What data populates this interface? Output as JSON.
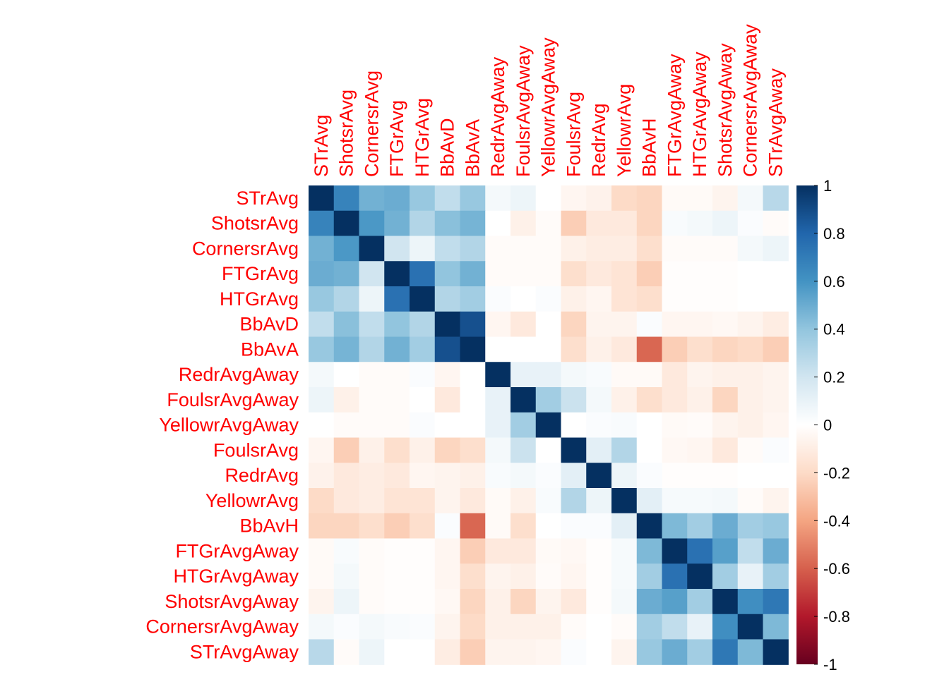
{
  "chart_data": {
    "type": "heatmap",
    "title": "",
    "variables": [
      "STrAvg",
      "ShotsrAvg",
      "CornersrAvg",
      "FTGrAvg",
      "HTGrAvg",
      "BbAvD",
      "BbAvA",
      "RedrAvgAway",
      "FoulsrAvgAway",
      "YellowrAvgAway",
      "FoulsrAvg",
      "RedrAvg",
      "YellowrAvg",
      "BbAvH",
      "FTGrAvgAway",
      "HTGrAvgAway",
      "ShotsrAvgAway",
      "CornersrAvgAway",
      "STrAvgAway"
    ],
    "matrix": [
      [
        1,
        0.67,
        0.48,
        0.5,
        0.38,
        0.25,
        0.38,
        0.05,
        0.08,
        0,
        -0.05,
        -0.07,
        -0.2,
        -0.22,
        -0.03,
        -0.03,
        -0.06,
        0.05,
        0.28
      ],
      [
        0.67,
        1,
        0.58,
        0.48,
        0.3,
        0.42,
        0.47,
        0,
        -0.08,
        -0.02,
        -0.25,
        -0.12,
        -0.12,
        -0.22,
        0.03,
        0.05,
        0.08,
        0.02,
        -0.02
      ],
      [
        0.48,
        0.58,
        1,
        0.2,
        0.08,
        0.25,
        0.3,
        -0.02,
        -0.02,
        -0.02,
        -0.08,
        -0.1,
        -0.1,
        -0.18,
        -0.02,
        -0.02,
        -0.02,
        0.05,
        0.08
      ],
      [
        0.5,
        0.48,
        0.2,
        1,
        0.75,
        0.4,
        0.48,
        -0.02,
        -0.02,
        -0.02,
        -0.18,
        -0.12,
        -0.15,
        -0.25,
        -0.01,
        -0.01,
        -0.01,
        0,
        0
      ],
      [
        0.38,
        0.3,
        0.08,
        0.75,
        1,
        0.3,
        0.35,
        0.02,
        0,
        0.02,
        -0.08,
        -0.05,
        -0.15,
        -0.18,
        -0.01,
        -0.01,
        -0.01,
        0,
        0
      ],
      [
        0.25,
        0.42,
        0.25,
        0.4,
        0.3,
        1,
        0.88,
        -0.05,
        -0.12,
        0,
        -0.22,
        -0.06,
        -0.06,
        0.02,
        -0.05,
        -0.05,
        -0.04,
        -0.06,
        -0.1
      ],
      [
        0.38,
        0.47,
        0.3,
        0.48,
        0.35,
        0.88,
        1,
        0,
        0,
        0,
        -0.18,
        -0.08,
        -0.12,
        -0.58,
        -0.25,
        -0.18,
        -0.22,
        -0.2,
        -0.25
      ],
      [
        0.05,
        0,
        -0.02,
        -0.02,
        0.02,
        -0.05,
        0,
        1,
        0.1,
        0.1,
        0.05,
        0.03,
        -0.03,
        -0.03,
        -0.12,
        -0.06,
        -0.08,
        -0.08,
        -0.06
      ],
      [
        0.08,
        -0.08,
        -0.02,
        -0.02,
        0,
        -0.12,
        0,
        0.1,
        1,
        0.35,
        0.22,
        0.05,
        -0.08,
        -0.18,
        -0.12,
        -0.08,
        -0.22,
        -0.08,
        -0.06
      ],
      [
        0,
        -0.02,
        -0.02,
        -0.02,
        0.02,
        0,
        0,
        0.1,
        0.35,
        1,
        0,
        0.02,
        0.03,
        0,
        -0.03,
        -0.02,
        -0.06,
        -0.08,
        -0.05
      ],
      [
        -0.05,
        -0.25,
        -0.08,
        -0.18,
        -0.08,
        -0.22,
        -0.18,
        0.05,
        0.22,
        0,
        1,
        0.12,
        0.3,
        0,
        -0.04,
        -0.05,
        -0.12,
        -0.02,
        0.02
      ],
      [
        -0.07,
        -0.12,
        -0.1,
        -0.12,
        -0.05,
        -0.06,
        -0.08,
        0.03,
        0.05,
        0.02,
        0.12,
        1,
        0.08,
        0.02,
        -0.01,
        -0.01,
        -0.01,
        0,
        0
      ],
      [
        -0.2,
        -0.12,
        -0.1,
        -0.15,
        -0.15,
        -0.06,
        -0.12,
        -0.03,
        -0.08,
        0.03,
        0.3,
        0.08,
        1,
        0.12,
        0.04,
        0.04,
        0.05,
        -0.02,
        -0.06
      ],
      [
        -0.22,
        -0.22,
        -0.18,
        -0.25,
        -0.18,
        0.02,
        -0.58,
        -0.03,
        -0.18,
        0,
        0.02,
        0.02,
        0.12,
        1,
        0.45,
        0.35,
        0.5,
        0.35,
        0.38
      ],
      [
        -0.03,
        0.03,
        -0.02,
        -0.01,
        -0.01,
        -0.05,
        -0.25,
        -0.12,
        -0.12,
        -0.03,
        -0.04,
        -0.01,
        0.04,
        0.45,
        1,
        0.75,
        0.55,
        0.25,
        0.5
      ],
      [
        -0.03,
        0.05,
        -0.02,
        -0.01,
        -0.01,
        -0.05,
        -0.18,
        -0.06,
        -0.08,
        -0.02,
        -0.05,
        -0.01,
        0.04,
        0.35,
        0.75,
        1,
        0.35,
        0.1,
        0.35
      ],
      [
        -0.06,
        0.08,
        -0.02,
        -0.01,
        -0.01,
        -0.04,
        -0.22,
        -0.08,
        -0.22,
        -0.06,
        -0.12,
        -0.01,
        0.05,
        0.5,
        0.55,
        0.35,
        1,
        0.62,
        0.72
      ],
      [
        0.05,
        0.02,
        0.05,
        0.03,
        0.02,
        -0.06,
        -0.2,
        -0.08,
        -0.08,
        -0.08,
        -0.02,
        0,
        -0.02,
        0.35,
        0.25,
        0.1,
        0.62,
        1,
        0.45
      ],
      [
        0.28,
        -0.02,
        0.08,
        0,
        0,
        -0.1,
        -0.25,
        -0.06,
        -0.06,
        -0.05,
        0.02,
        0,
        -0.06,
        0.38,
        0.5,
        0.35,
        0.72,
        0.45,
        1
      ]
    ],
    "colorbar": {
      "range": [
        -1,
        1
      ],
      "ticks": [
        "1",
        "0.8",
        "0.6",
        "0.4",
        "0.2",
        "0",
        "-0.2",
        "-0.4",
        "-0.6",
        "-0.8",
        "-1"
      ],
      "colors": [
        "#67001F",
        "#B2182B",
        "#D6604D",
        "#F4A582",
        "#FDDBC7",
        "#FFFFFF",
        "#D1E5F0",
        "#92C5DE",
        "#4393C3",
        "#2166AC",
        "#053061"
      ]
    },
    "label_color": "#FF0000",
    "xlabel": "",
    "ylabel": ""
  }
}
